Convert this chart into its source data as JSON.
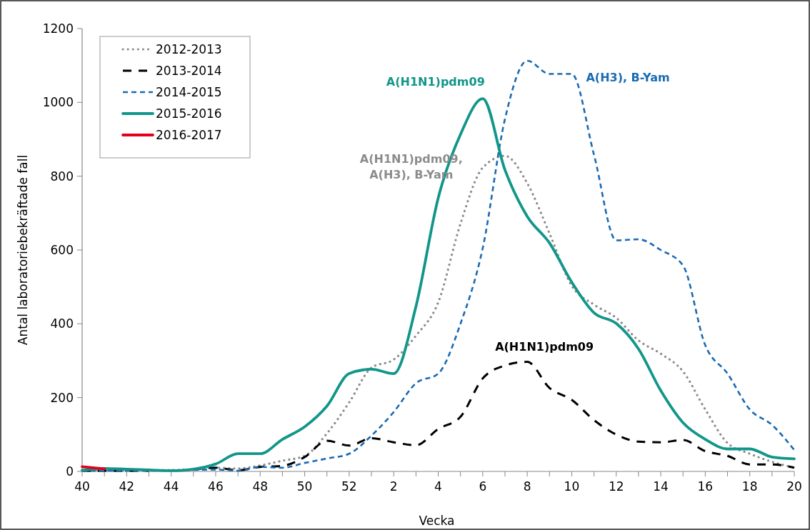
{
  "chart_data": {
    "type": "line",
    "xlabel": "Vecka",
    "ylabel": "Antal laboratoriebekräftade fall",
    "categories": [
      "40",
      null,
      "42",
      null,
      "44",
      null,
      "46",
      null,
      "48",
      null,
      "50",
      null,
      "52",
      null,
      "2",
      null,
      "4",
      null,
      "6",
      null,
      "8",
      null,
      "10",
      null,
      "12",
      null,
      "14",
      null,
      "16",
      null,
      "18",
      null,
      "20"
    ],
    "series": [
      {
        "name": "2012-2013",
        "color": "#8c8c8c",
        "line_style": "dotted",
        "values": [
          3,
          3,
          3,
          3,
          4,
          5,
          10,
          8,
          16,
          29,
          42,
          103,
          187,
          281,
          303,
          368,
          458,
          671,
          823,
          855,
          781,
          645,
          503,
          452,
          416,
          355,
          319,
          271,
          168,
          77,
          48,
          26,
          10
        ]
      },
      {
        "name": "2013-2014",
        "color": "#000000",
        "line_style": "dashed",
        "values": [
          2,
          2,
          2,
          2,
          null,
          5,
          10,
          3,
          12,
          15,
          39,
          83,
          70,
          90,
          79,
          71,
          115,
          148,
          252,
          287,
          297,
          226,
          194,
          139,
          100,
          81,
          79,
          85,
          55,
          42,
          19,
          19,
          10
        ]
      },
      {
        "name": "2014-2015",
        "color": "#1a6bb3",
        "line_style": "dashed",
        "values": [
          2,
          2,
          2,
          2,
          3,
          4,
          5,
          2,
          12,
          10,
          23,
          35,
          48,
          97,
          161,
          239,
          265,
          400,
          605,
          955,
          1113,
          1077,
          1077,
          858,
          626,
          629,
          600,
          558,
          342,
          265,
          168,
          126,
          58
        ]
      },
      {
        "name": "2015-2016",
        "color": "#12968a",
        "line_style": "solid",
        "values": [
          3,
          8,
          6,
          4,
          2,
          6,
          20,
          48,
          48,
          87,
          121,
          177,
          265,
          277,
          265,
          447,
          741,
          913,
          1010,
          817,
          691,
          619,
          513,
          430,
          401,
          332,
          219,
          132,
          87,
          61,
          61,
          39,
          34
        ]
      },
      {
        "name": "2016-2017",
        "color": "#e3001b",
        "line_style": "solid",
        "values": [
          13,
          7,
          null,
          null,
          null,
          null,
          null,
          null,
          null,
          null,
          null,
          null,
          null,
          null,
          null,
          null,
          null,
          null,
          null,
          null,
          null,
          null,
          null,
          null,
          null,
          null,
          null,
          null,
          null,
          null,
          null,
          null,
          null
        ]
      }
    ],
    "ylim": [
      0,
      1200
    ],
    "yticks": [
      0,
      200,
      400,
      600,
      800,
      1000,
      1200
    ],
    "grid": false,
    "legend": "top left",
    "annotations": [
      {
        "text": "A(H1N1)pdm09",
        "x": "6",
        "y": 1010
      },
      {
        "text": "A(H1N1)pdm09,\nA(H3), B-Yam",
        "x": "6",
        "y": 823
      },
      {
        "text": "A(H1N1)pdm09",
        "x": "8",
        "y": 297
      },
      {
        "text": "A(H3), B-Yam",
        "x": "10",
        "y": 1077
      }
    ]
  }
}
